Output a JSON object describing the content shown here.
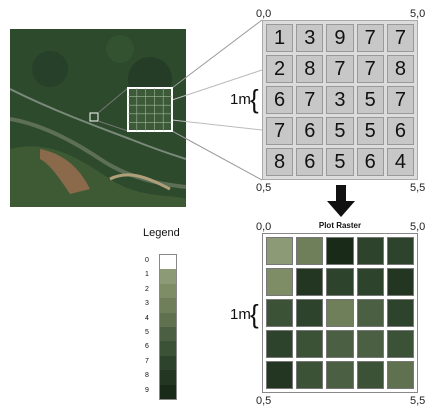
{
  "top_grid": {
    "values": [
      [
        1,
        3,
        9,
        7,
        7
      ],
      [
        2,
        8,
        7,
        7,
        8
      ],
      [
        6,
        7,
        3,
        5,
        7
      ],
      [
        7,
        6,
        5,
        5,
        6
      ],
      [
        8,
        6,
        5,
        6,
        4
      ]
    ],
    "corner_tl": "0,0",
    "corner_tr": "5,0",
    "corner_bl": "0,5",
    "corner_br": "5,5",
    "cell_size_label": "1m"
  },
  "plot_raster": {
    "title": "Plot Raster",
    "corner_tl": "0,0",
    "corner_tr": "5,0",
    "corner_bl": "0,5",
    "corner_br": "5,5",
    "cell_size_label": "1m"
  },
  "legend": {
    "title": "Legend",
    "entries": [
      {
        "label": "0",
        "color": "#ffffff"
      },
      {
        "label": "1",
        "color": "#8d9a76"
      },
      {
        "label": "2",
        "color": "#7f8d67"
      },
      {
        "label": "3",
        "color": "#6f7f5a"
      },
      {
        "label": "4",
        "color": "#5f714e"
      },
      {
        "label": "5",
        "color": "#4b6042"
      },
      {
        "label": "6",
        "color": "#3c5236"
      },
      {
        "label": "7",
        "color": "#2e432b"
      },
      {
        "label": "8",
        "color": "#233622"
      },
      {
        "label": "9",
        "color": "#1a2a19"
      }
    ]
  },
  "satellite": {
    "colors": {
      "forest": "#2d4a2c",
      "field": "#5d6b3e",
      "river": "#6b7d8c",
      "bare": "#a08f6f"
    }
  }
}
